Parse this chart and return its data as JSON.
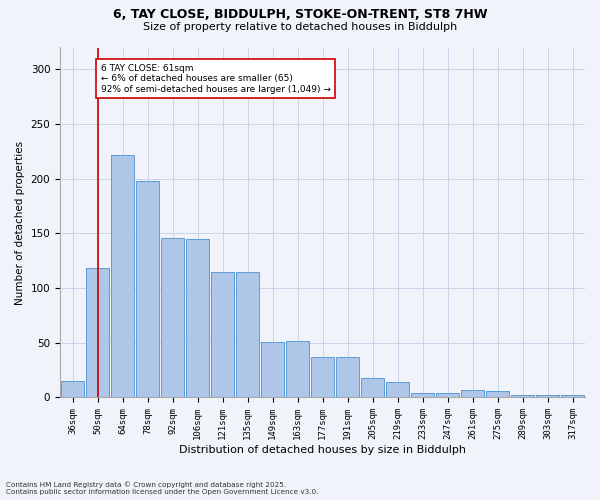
{
  "title_line1": "6, TAY CLOSE, BIDDULPH, STOKE-ON-TRENT, ST8 7HW",
  "title_line2": "Size of property relative to detached houses in Biddulph",
  "xlabel": "Distribution of detached houses by size in Biddulph",
  "ylabel": "Number of detached properties",
  "categories": [
    "36sqm",
    "50sqm",
    "64sqm",
    "78sqm",
    "92sqm",
    "106sqm",
    "121sqm",
    "135sqm",
    "149sqm",
    "163sqm",
    "177sqm",
    "191sqm",
    "205sqm",
    "219sqm",
    "233sqm",
    "247sqm",
    "261sqm",
    "275sqm",
    "289sqm",
    "303sqm",
    "317sqm"
  ],
  "values": [
    15,
    118,
    222,
    198,
    146,
    145,
    115,
    115,
    51,
    52,
    37,
    37,
    18,
    14,
    4,
    4,
    7,
    6,
    2,
    2,
    2
  ],
  "bar_color": "#aec6e8",
  "bar_edge_color": "#5b9bd5",
  "vline_x": 1.0,
  "vline_color": "#cc0000",
  "annotation_text": "6 TAY CLOSE: 61sqm\n← 6% of detached houses are smaller (65)\n92% of semi-detached houses are larger (1,049) →",
  "annotation_box_color": "#ffffff",
  "annotation_box_edge_color": "#cc0000",
  "ylim": [
    0,
    320
  ],
  "yticks": [
    0,
    50,
    100,
    150,
    200,
    250,
    300
  ],
  "footer_line1": "Contains HM Land Registry data © Crown copyright and database right 2025.",
  "footer_line2": "Contains public sector information licensed under the Open Government Licence v3.0.",
  "bg_color": "#f0f4fa",
  "plot_bg_color": "#f0f4fa",
  "grid_color": "#c8d4e8"
}
